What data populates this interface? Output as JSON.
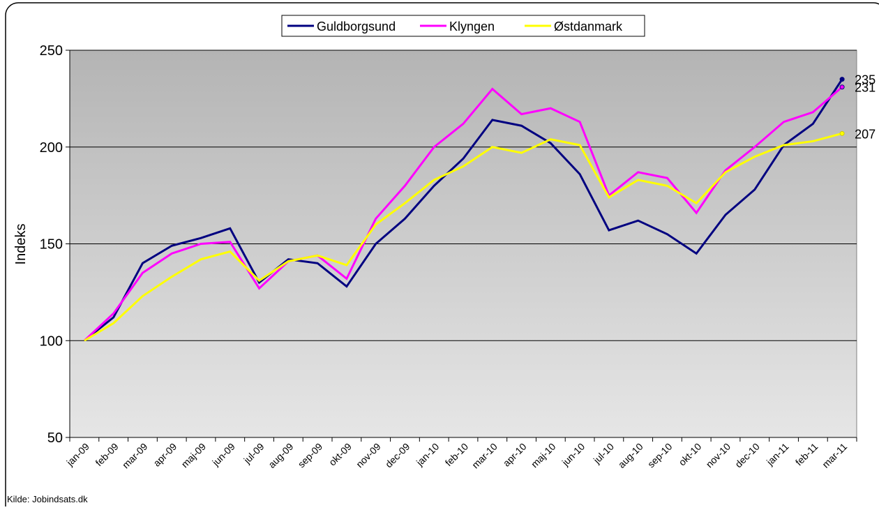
{
  "chart_data": {
    "type": "line",
    "y_label": "Indeks",
    "source": "Kilde: Jobindsats.dk",
    "categories": [
      "jan-09",
      "feb-09",
      "mar-09",
      "apr-09",
      "maj-09",
      "jun-09",
      "jul-09",
      "aug-09",
      "sep-09",
      "okt-09",
      "nov-09",
      "dec-09",
      "jan-10",
      "feb-10",
      "mar-10",
      "apr-10",
      "maj-10",
      "jun-10",
      "jul-10",
      "aug-10",
      "sep-10",
      "okt-10",
      "nov-10",
      "dec-10",
      "jan-11",
      "feb-11",
      "mar-11"
    ],
    "series": [
      {
        "name": "Guldborgsund",
        "color": "#000080",
        "values": [
          100,
          112,
          140,
          149,
          153,
          158,
          130,
          142,
          140,
          128,
          150,
          163,
          180,
          194,
          214,
          211,
          202,
          186,
          157,
          162,
          155,
          145,
          165,
          178,
          201,
          212,
          235
        ]
      },
      {
        "name": "Klyngen",
        "color": "#ff00ff",
        "values": [
          100,
          114,
          135,
          145,
          150,
          151,
          127,
          141,
          144,
          132,
          163,
          180,
          200,
          212,
          230,
          217,
          220,
          213,
          175,
          187,
          184,
          166,
          188,
          200,
          213,
          218,
          231
        ]
      },
      {
        "name": "Østdanmark",
        "color": "#ffff00",
        "values": [
          100,
          109,
          123,
          133,
          142,
          146,
          131,
          141,
          144,
          139,
          160,
          171,
          183,
          190,
          200,
          197,
          204,
          201,
          174,
          183,
          180,
          171,
          187,
          195,
          201,
          203,
          207
        ]
      }
    ],
    "ylim": [
      50,
      250
    ],
    "yticks": [
      50,
      100,
      150,
      200,
      250
    ],
    "grid": true,
    "legend": "top"
  }
}
